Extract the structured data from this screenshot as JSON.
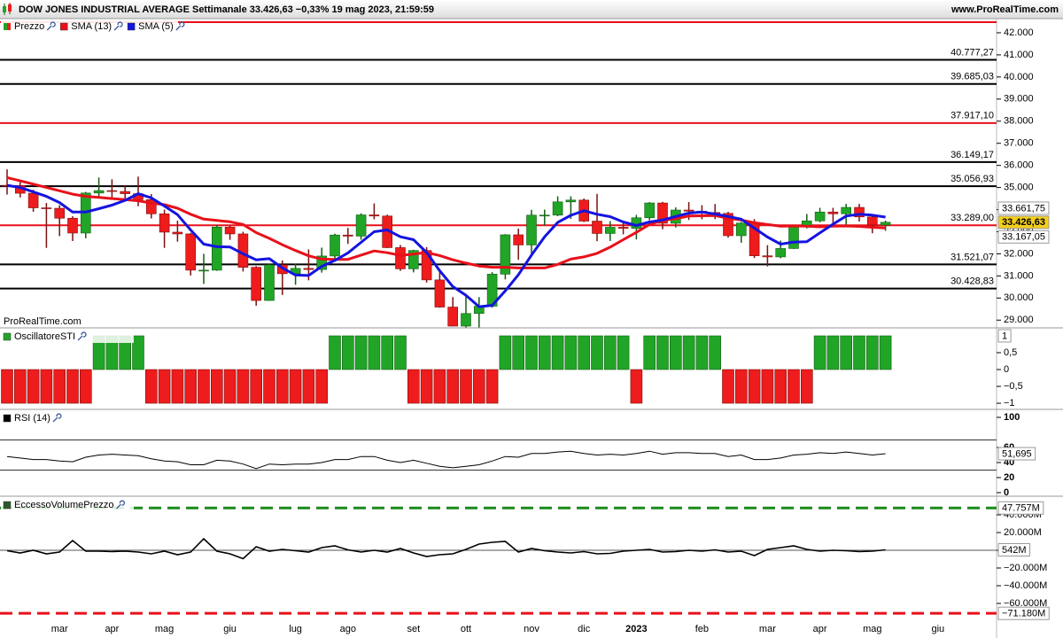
{
  "chart_data": [
    {
      "type": "candlestick",
      "title": "DOW JONES INDUSTRIAL AVERAGE Settimanale 33.426,63 −0,33% 19 mag 2023, 21:59:59",
      "source": "www.ProRealTime.com",
      "watermark": "ProRealTime.com",
      "ohlc_name": "Prezzo",
      "up_color": "#21a527",
      "down_color": "#ee1c1c",
      "categories": [
        null,
        null,
        null,
        null,
        "mar",
        null,
        null,
        null,
        "apr",
        null,
        null,
        null,
        "mag",
        null,
        null,
        null,
        null,
        "giu",
        null,
        null,
        null,
        null,
        "lug",
        null,
        null,
        null,
        "ago",
        null,
        null,
        null,
        null,
        "set",
        null,
        null,
        null,
        "ott",
        null,
        null,
        null,
        null,
        "nov",
        null,
        null,
        null,
        "dic",
        null,
        null,
        null,
        "2023",
        null,
        null,
        null,
        null,
        "feb",
        null,
        null,
        null,
        null,
        "mar",
        null,
        null,
        null,
        "apr",
        null,
        null,
        null,
        "mag",
        null,
        null,
        null,
        null,
        "giu"
      ],
      "open": [
        35100,
        35090,
        34740,
        34080,
        34060,
        33610,
        32940,
        34750,
        34860,
        34820,
        34720,
        34450,
        33810,
        32980,
        32900,
        31260,
        31260,
        33210,
        32900,
        31390,
        29890,
        31500,
        31100,
        31340,
        31290,
        31900,
        32850,
        32800,
        33760,
        33710,
        32280,
        31320,
        32150,
        30820,
        29590,
        28730,
        29300,
        29630,
        31080,
        32860,
        32400,
        33750,
        33750,
        34350,
        34430,
        33480,
        32920,
        33200,
        33150,
        33630,
        34300,
        33380,
        33980,
        33930,
        33870,
        33830,
        32820,
        33390,
        31910,
        31860,
        32240,
        33270,
        33490,
        33890,
        33810,
        34100,
        33670,
        33300,
        null,
        null,
        null,
        null
      ],
      "high": [
        35820,
        35250,
        34900,
        34300,
        34200,
        33700,
        34800,
        35450,
        35370,
        35100,
        35490,
        34700,
        34000,
        33500,
        32950,
        32000,
        33300,
        33270,
        33000,
        31440,
        31560,
        31700,
        31550,
        32200,
        32280,
        32910,
        33170,
        33830,
        34280,
        33770,
        32400,
        32180,
        32300,
        31300,
        30040,
        30170,
        30040,
        31170,
        32890,
        33140,
        33990,
        34000,
        34600,
        34600,
        34500,
        34710,
        33480,
        33400,
        33760,
        34340,
        34350,
        34100,
        34340,
        34200,
        34250,
        33900,
        33440,
        33570,
        32390,
        32600,
        33320,
        33800,
        34080,
        34080,
        34260,
        34260,
        33750,
        33500,
        null,
        null,
        null,
        null
      ],
      "low": [
        34680,
        34550,
        33900,
        32270,
        32800,
        32580,
        32700,
        34600,
        34550,
        34400,
        34150,
        33600,
        32270,
        32550,
        31020,
        30640,
        31230,
        32630,
        31200,
        29650,
        29870,
        30140,
        30600,
        30800,
        31150,
        31700,
        32450,
        32640,
        33560,
        32260,
        31230,
        31160,
        30700,
        29560,
        28720,
        28660,
        28660,
        29560,
        30840,
        31730,
        32000,
        33290,
        33700,
        33580,
        33440,
        32570,
        32580,
        32880,
        32650,
        33520,
        33110,
        33190,
        33530,
        33560,
        33570,
        32730,
        32500,
        31810,
        31430,
        31800,
        32220,
        33150,
        33430,
        33350,
        33240,
        33460,
        32930,
        33040,
        null,
        null,
        null,
        null
      ],
      "close": [
        35090,
        34740,
        34080,
        34060,
        33610,
        32940,
        34750,
        34860,
        34820,
        34720,
        34450,
        33810,
        32980,
        32900,
        31260,
        31260,
        33210,
        32900,
        31390,
        29890,
        31500,
        31100,
        31340,
        31290,
        31900,
        32850,
        32800,
        33760,
        33710,
        32280,
        31320,
        32150,
        30820,
        29590,
        28730,
        29300,
        29630,
        31080,
        32860,
        32400,
        33750,
        33750,
        34350,
        34430,
        33480,
        32920,
        33200,
        33150,
        33630,
        34300,
        33380,
        33980,
        33930,
        33870,
        33830,
        32820,
        33390,
        31910,
        31860,
        32240,
        33270,
        33490,
        33890,
        33810,
        34100,
        33670,
        33300,
        33426.63,
        null,
        null,
        null,
        null
      ],
      "series": [
        {
          "name": "SMA (13)",
          "color": "#e8101a",
          "values": [
            35450,
            35300,
            35150,
            35000,
            34850,
            34700,
            34600,
            34550,
            34500,
            34450,
            34400,
            34300,
            34220,
            34060,
            33790,
            33570,
            33510,
            33450,
            33330,
            32960,
            32700,
            32410,
            32150,
            31910,
            31760,
            31750,
            31750,
            31940,
            32130,
            32050,
            31930,
            31990,
            32060,
            31920,
            31730,
            31580,
            31450,
            31390,
            31390,
            31360,
            31360,
            31360,
            31520,
            31760,
            31860,
            32020,
            32300,
            32640,
            32970,
            33330,
            33510,
            33590,
            33710,
            33720,
            33730,
            33610,
            33530,
            33410,
            33330,
            33250,
            33260,
            33250,
            33220,
            33250,
            33260,
            33240,
            33200,
            33167.05,
            null,
            null,
            null,
            null
          ]
        },
        {
          "name": "SMA (5)",
          "color": "#1414e0",
          "values": [
            35100,
            35000,
            34800,
            34600,
            34320,
            33890,
            33890,
            34040,
            34200,
            34420,
            34720,
            34530,
            34160,
            33770,
            33080,
            32440,
            32320,
            32310,
            32000,
            31730,
            31780,
            31360,
            31040,
            31020,
            31430,
            31700,
            32040,
            32520,
            33000,
            33080,
            32770,
            32640,
            32060,
            31230,
            30520,
            30120,
            29610,
            29670,
            30320,
            31050,
            31940,
            32770,
            33420,
            33740,
            33950,
            33790,
            33680,
            33440,
            33280,
            33440,
            33530,
            33690,
            33840,
            33890,
            33800,
            33690,
            33570,
            33160,
            32760,
            32440,
            32530,
            32550,
            32950,
            33340,
            33710,
            33790,
            33750,
            33661.75,
            null,
            null,
            null,
            null
          ]
        }
      ],
      "levels": [
        {
          "value": 40777.27,
          "label": "40.777,27",
          "color": "#000000"
        },
        {
          "value": 39685.03,
          "label": "39.685,03",
          "color": "#000000"
        },
        {
          "value": 37917.1,
          "label": "37.917,10",
          "color": "#e8101a"
        },
        {
          "value": 36149.17,
          "label": "36.149,17",
          "color": "#000000"
        },
        {
          "value": 35056.93,
          "label": "35.056,93",
          "color": "#000000"
        },
        {
          "value": 33289.0,
          "label": "33.289,00",
          "color": "#e8101a"
        },
        {
          "value": 31521.07,
          "label": "31.521,07",
          "color": "#000000"
        },
        {
          "value": 30428.83,
          "label": "30.428,83",
          "color": "#000000"
        }
      ],
      "last_labels": [
        {
          "value": 33661.75,
          "label": "33.661,75",
          "color": "#3344aa",
          "background": "#ffffff"
        },
        {
          "value": 33426.63,
          "label": "33.426,63",
          "color": "#000000",
          "background": "#f2cf1d"
        },
        {
          "value": 33167.05,
          "label": "33.167,05",
          "color": "#e8101a",
          "background": "#ffffff"
        }
      ],
      "ylim": [
        28650,
        42600
      ],
      "yticks": [
        {
          "value": 42000,
          "label": "42.000"
        },
        {
          "value": 41000,
          "label": "41.000"
        },
        {
          "value": 40000,
          "label": "40.000"
        },
        {
          "value": 39000,
          "label": "39.000"
        },
        {
          "value": 38000,
          "label": "38.000"
        },
        {
          "value": 37000,
          "label": "37.000"
        },
        {
          "value": 36000,
          "label": "36.000"
        },
        {
          "value": 35000,
          "label": "35.000"
        },
        {
          "value": 34000,
          "label": "34.000"
        },
        {
          "value": 33000,
          "label": "33.000"
        },
        {
          "value": 32000,
          "label": "32.000"
        },
        {
          "value": 31000,
          "label": "31.000"
        },
        {
          "value": 30000,
          "label": "30.000"
        },
        {
          "value": 29000,
          "label": "29.000"
        }
      ]
    },
    {
      "type": "bar",
      "title": "OscillatoreSTI",
      "up_color": "#21a527",
      "down_color": "#ee1c1c",
      "values": [
        -1,
        -1,
        -1,
        -1,
        -1,
        -1,
        -1,
        1,
        1,
        1,
        1,
        -1,
        -1,
        -1,
        -1,
        -1,
        -1,
        -1,
        -1,
        -1,
        -1,
        -1,
        -1,
        -1,
        -1,
        1,
        1,
        1,
        1,
        1,
        1,
        -1,
        -1,
        -1,
        -1,
        -1,
        -1,
        -1,
        1,
        1,
        1,
        1,
        1,
        1,
        1,
        1,
        1,
        1,
        -1,
        1,
        1,
        1,
        1,
        1,
        1,
        -1,
        -1,
        -1,
        -1,
        -1,
        -1,
        -1,
        1,
        1,
        1,
        1,
        1,
        1,
        null,
        null,
        null,
        null
      ],
      "ylim": [
        -1.13,
        1.21
      ],
      "yticks": [
        {
          "value": 0.5,
          "label": "0,5"
        },
        0,
        {
          "value": -0.5,
          "label": "−0,5"
        },
        {
          "value": -1,
          "label": "−1"
        }
      ]
    },
    {
      "type": "line",
      "title": "RSI (14)",
      "color": "#000000",
      "values": [
        48,
        46,
        44,
        44,
        42,
        41,
        47,
        50,
        51,
        50,
        49,
        45,
        42,
        41,
        37,
        37,
        43,
        42,
        38,
        32,
        38,
        37,
        38,
        38,
        40,
        44,
        44,
        48,
        48,
        43,
        40,
        43,
        39,
        35,
        33,
        35,
        37,
        42,
        48,
        47,
        52,
        52,
        54,
        55,
        52,
        50,
        51,
        50,
        52,
        55,
        51,
        53,
        53,
        52,
        52,
        48,
        50,
        44,
        44,
        46,
        50,
        51,
        53,
        52,
        54,
        52,
        50,
        51.695,
        null,
        null,
        null,
        null
      ],
      "levels": [
        70,
        30
      ],
      "last_value": {
        "value": 51.695,
        "label": "51,695"
      },
      "ylim": [
        -2.4,
        109.4
      ],
      "yticks": [
        100,
        60,
        40,
        20,
        0
      ]
    },
    {
      "type": "line",
      "title": "EccessoVolumePrezzo",
      "color": "#000000",
      "values": [
        -500,
        -3000,
        0,
        -4000,
        -2000,
        11000,
        -1000,
        -1000,
        -1500,
        -1000,
        -2000,
        -4000,
        -1000,
        -5000,
        -2000,
        13000,
        -1000,
        -4000,
        -9500,
        4000,
        -1000,
        1000,
        -500,
        -2000,
        3000,
        5000,
        500,
        -2000,
        0,
        -2000,
        2000,
        -3000,
        -7000,
        -5000,
        -4000,
        1000,
        7000,
        9000,
        10000,
        -2000,
        2000,
        -500,
        -2000,
        -3000,
        -1500,
        -4000,
        -3500,
        -1000,
        0,
        1000,
        -2000,
        -1500,
        0,
        -1000,
        500,
        -2000,
        -1000,
        -6000,
        1000,
        3000,
        5000,
        1000,
        -1000,
        0,
        -500,
        -1500,
        -1000,
        542,
        null,
        null,
        null,
        null
      ],
      "levels": [
        {
          "value": 47757,
          "label": "47.757M",
          "color": "#1c8a1c"
        },
        {
          "value": -71180,
          "label": "−71.180M",
          "color": "#e8101a"
        }
      ],
      "dashed_levels": true,
      "zero_line": true,
      "last_value": {
        "value": 542,
        "label": "542M"
      },
      "ylim": [
        -79000,
        60000
      ],
      "yticks": [
        {
          "value": 40000,
          "label": "40.000M"
        },
        {
          "value": 20000,
          "label": "20.000M"
        },
        0,
        {
          "value": -20000,
          "label": "−20.000M"
        },
        {
          "value": -40000,
          "label": "−40.000M"
        },
        {
          "value": -60000,
          "label": "−60.000M"
        }
      ]
    }
  ]
}
